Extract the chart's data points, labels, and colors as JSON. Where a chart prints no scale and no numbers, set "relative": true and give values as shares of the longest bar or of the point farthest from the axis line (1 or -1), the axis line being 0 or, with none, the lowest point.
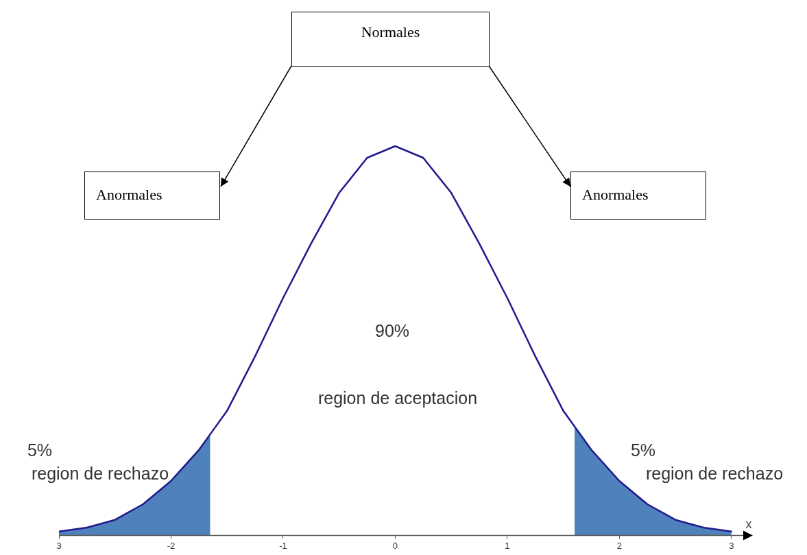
{
  "chart_data": {
    "type": "line",
    "relative": true,
    "xlabel": "x",
    "xlim": [
      -3,
      3.13
    ],
    "xticks": [
      {
        "value": -3,
        "label": "3"
      },
      -2,
      -1,
      0,
      1,
      2,
      3
    ],
    "grid": false,
    "legend": false,
    "marker": "none",
    "line_style": "solid",
    "series": [
      {
        "type": "area",
        "color": "#4f81bd",
        "x": [
          -3,
          -2.75,
          -2.5,
          -2.25,
          -2,
          -1.75,
          -1.65
        ],
        "values": [
          0.01,
          0.02,
          0.04,
          0.08,
          0.14,
          0.22,
          0.26
        ]
      },
      {
        "type": "area",
        "color": "#4f81bd",
        "x": [
          1.6,
          1.75,
          2,
          2.25,
          2.5,
          2.75,
          3
        ],
        "values": [
          0.28,
          0.22,
          0.14,
          0.08,
          0.04,
          0.02,
          0.01
        ]
      },
      {
        "color": "#1f1a8c",
        "x": [
          -3,
          -2.75,
          -2.5,
          -2.25,
          -2,
          -1.75,
          -1.65,
          -1.5,
          -1.25,
          -1,
          -0.75,
          -0.5,
          -0.25,
          0,
          0.25,
          0.5,
          0.75,
          1,
          1.25,
          1.5,
          1.6,
          1.75,
          2,
          2.25,
          2.5,
          2.75,
          3
        ],
        "values": [
          0.01,
          0.02,
          0.04,
          0.08,
          0.14,
          0.22,
          0.26,
          0.32,
          0.46,
          0.61,
          0.75,
          0.88,
          0.97,
          1,
          0.97,
          0.88,
          0.75,
          0.61,
          0.46,
          0.32,
          0.28,
          0.22,
          0.14,
          0.08,
          0.04,
          0.02,
          0.01
        ]
      }
    ],
    "annotations": [
      "Normales",
      "Anormales",
      "Anormales",
      "90%",
      "region de aceptacion",
      "5%",
      "region de rechazo",
      "5%",
      "region de rechazo"
    ]
  }
}
